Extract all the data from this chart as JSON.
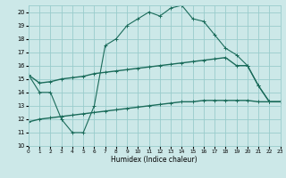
{
  "xlabel": "Humidex (Indice chaleur)",
  "background_color": "#cce8e8",
  "grid_color": "#99cccc",
  "line_color": "#1a6b5a",
  "x_main": [
    0,
    1,
    2,
    3,
    4,
    5,
    6,
    7,
    8,
    9,
    10,
    11,
    12,
    13,
    14,
    15,
    16,
    17,
    18,
    19,
    20,
    21,
    22,
    23
  ],
  "y_main": [
    15.3,
    14.0,
    14.0,
    12.0,
    11.0,
    11.0,
    13.0,
    17.5,
    18.0,
    19.0,
    19.5,
    20.0,
    19.7,
    20.3,
    20.5,
    19.5,
    19.3,
    18.3,
    17.3,
    16.8,
    16.0,
    14.5,
    13.3,
    13.3
  ],
  "y_upper": [
    15.3,
    14.7,
    14.8,
    15.0,
    15.1,
    15.2,
    15.4,
    15.5,
    15.6,
    15.7,
    15.8,
    15.9,
    16.0,
    16.1,
    16.2,
    16.3,
    16.4,
    16.5,
    16.6,
    16.0,
    16.0,
    14.5,
    13.3,
    13.3
  ],
  "y_lower": [
    11.8,
    12.0,
    12.1,
    12.2,
    12.3,
    12.4,
    12.5,
    12.6,
    12.7,
    12.8,
    12.9,
    13.0,
    13.1,
    13.2,
    13.3,
    13.3,
    13.4,
    13.4,
    13.4,
    13.4,
    13.4,
    13.3,
    13.3,
    13.3
  ],
  "xlim": [
    0,
    23
  ],
  "ylim": [
    10,
    20.5
  ],
  "yticks": [
    10,
    11,
    12,
    13,
    14,
    15,
    16,
    17,
    18,
    19,
    20
  ],
  "xticks": [
    0,
    1,
    2,
    3,
    4,
    5,
    6,
    7,
    8,
    9,
    10,
    11,
    12,
    13,
    14,
    15,
    16,
    17,
    18,
    19,
    20,
    21,
    22,
    23
  ],
  "figsize": [
    3.2,
    2.0
  ],
  "dpi": 100
}
